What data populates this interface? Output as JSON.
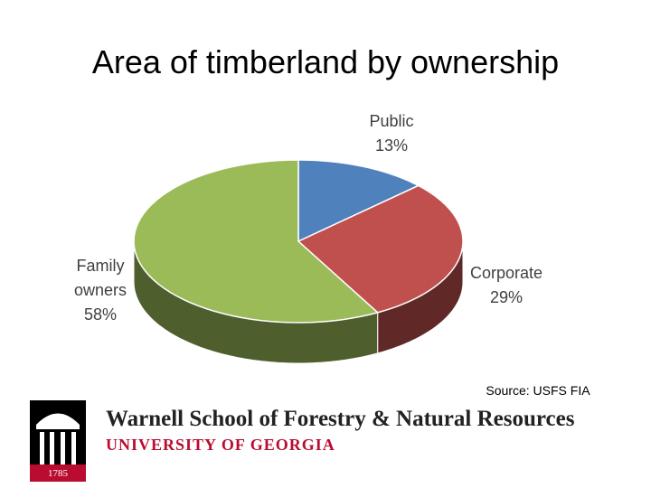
{
  "chart_data": {
    "type": "pie",
    "title": "Area of timberland by ownership",
    "categories": [
      "Public",
      "Corporate",
      "Family owners"
    ],
    "values": [
      13,
      29,
      58
    ],
    "value_labels": [
      "13%",
      "29%",
      "58%"
    ],
    "colors": [
      "#4f81bd",
      "#c0504d",
      "#9bbb59"
    ],
    "source": "Source: USFS FIA"
  },
  "footer": {
    "school": "Warnell School of Forestry & Natural Resources",
    "university": "UNIVERSITY OF GEORGIA",
    "year": "1785"
  }
}
